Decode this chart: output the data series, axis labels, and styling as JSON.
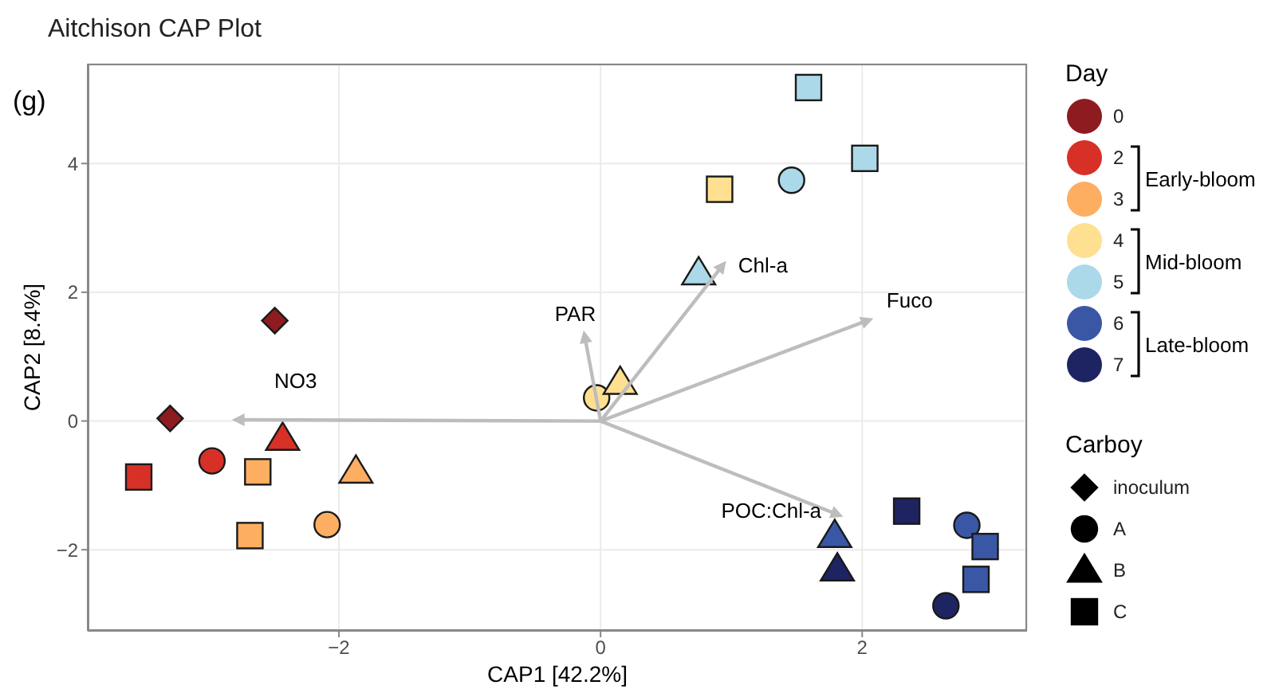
{
  "chart_data": {
    "type": "scatter",
    "title": "Aitchison CAP Plot",
    "xlabel": "CAP1   [42.2%]",
    "ylabel": "CAP2   [8.4%]",
    "legend_title": "Day",
    "legend": "right",
    "grid": true,
    "xlim": [
      -3.92,
      3.26
    ],
    "ylim": [
      -3.26,
      5.55
    ],
    "xticks": [
      -2,
      0,
      2
    ],
    "yticks": [
      -2,
      0,
      2,
      4
    ],
    "annotations": [
      "(g)",
      "Early-bloom",
      "Mid-bloom",
      "Late-bloom",
      "Carboy",
      "inoculum",
      "A",
      "B",
      "C",
      {
        "text": "NO3",
        "x": -2.77,
        "y": 0.02
      },
      {
        "text": "PAR",
        "x": -0.12,
        "y": 1.31
      },
      {
        "text": "Chl-a",
        "x": 0.93,
        "y": 2.41
      },
      {
        "text": "Fuco",
        "x": 2.04,
        "y": 1.56
      },
      {
        "text": "POC:Chl-a",
        "x": 1.81,
        "y": -1.45
      }
    ],
    "series": [
      {
        "type": "line",
        "color": "#bdbdbd",
        "marker": "triangle",
        "x": [
          0,
          -2.77,
          null,
          0,
          -0.12,
          null,
          0,
          0.93,
          null,
          0,
          2.04,
          null,
          0,
          1.81
        ],
        "values": [
          0,
          0.02,
          null,
          0,
          1.31,
          null,
          0,
          2.41,
          null,
          0,
          1.56,
          null,
          0,
          -1.45
        ]
      },
      {
        "name": "0",
        "color": "#8e1b1f",
        "marker": [
          "diamond",
          "diamond"
        ],
        "x": [
          -2.49,
          -3.29
        ],
        "values": [
          1.56,
          0.04
        ]
      },
      {
        "name": "2",
        "color": "#d73027",
        "marker": [
          "circle",
          "triangle",
          "square"
        ],
        "x": [
          -2.97,
          -2.43,
          -3.53
        ],
        "values": [
          -0.62,
          -0.27,
          -0.87
        ]
      },
      {
        "name": "3",
        "color": "#fdae61",
        "marker": [
          "circle",
          "triangle",
          "square",
          "square"
        ],
        "x": [
          -2.09,
          -1.87,
          -2.62,
          -2.68
        ],
        "values": [
          -1.61,
          -0.78,
          -0.79,
          -1.78
        ]
      },
      {
        "name": "4",
        "color": "#fee090",
        "marker": [
          "circle",
          "triangle",
          "square"
        ],
        "x": [
          -0.03,
          0.15,
          0.91
        ],
        "values": [
          0.36,
          0.6,
          3.6
        ]
      },
      {
        "name": "5",
        "color": "#abd9e9",
        "marker": [
          "circle",
          "triangle",
          "square",
          "square"
        ],
        "x": [
          1.46,
          0.75,
          1.59,
          2.02
        ],
        "values": [
          3.74,
          2.3,
          5.18,
          4.08
        ]
      },
      {
        "name": "6",
        "color": "#3a57a6",
        "marker": [
          "circle",
          "triangle",
          "square",
          "square"
        ],
        "x": [
          2.8,
          1.79,
          2.94,
          2.87
        ],
        "values": [
          -1.62,
          -1.78,
          -1.95,
          -2.46
        ]
      },
      {
        "name": "7",
        "color": "#1e2462",
        "marker": [
          "circle",
          "triangle",
          "square"
        ],
        "x": [
          2.64,
          1.81,
          2.34
        ],
        "values": [
          -2.87,
          -2.3,
          -1.4
        ]
      }
    ]
  }
}
